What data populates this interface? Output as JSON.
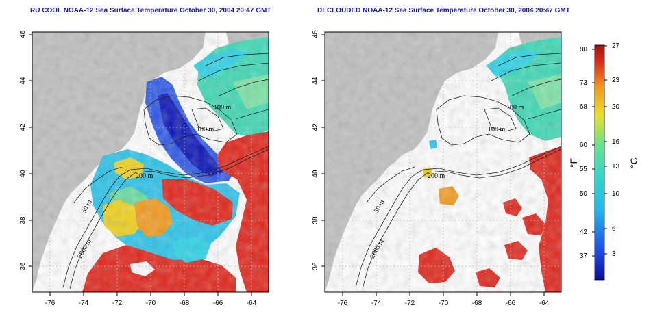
{
  "panels": [
    {
      "title": "RU COOL NOAA-12 Sea Surface Temperature October 30, 2004 20:47 GMT"
    },
    {
      "title": "DECLOUDED NOAA-12 Sea Surface Temperature October 30, 2004 20:47 GMT"
    }
  ],
  "axes": {
    "x_ticks": [
      "-76",
      "-74",
      "-72",
      "-70",
      "-68",
      "-66",
      "-64"
    ],
    "y_ticks": [
      "36",
      "38",
      "40",
      "42",
      "44",
      "46"
    ]
  },
  "contour_labels": [
    "100 m",
    "100 m",
    "200 m",
    "50 m",
    "2000 m"
  ],
  "colorbar": {
    "f_label": "°F",
    "c_label": "°C",
    "f_ticks": [
      "80",
      "73",
      "68",
      "60",
      "55",
      "50",
      "42",
      "37"
    ],
    "c_ticks": [
      "27",
      "23",
      "20",
      "16",
      "13",
      "10",
      "6",
      "3"
    ]
  },
  "colors": {
    "land": "#bfbfbf",
    "title": "#1a1aa8",
    "cold": "#0b15b8",
    "cool": "#1ec8e8",
    "mid": "#55e39a",
    "warm": "#f0d21a",
    "hot": "#e1251a"
  }
}
